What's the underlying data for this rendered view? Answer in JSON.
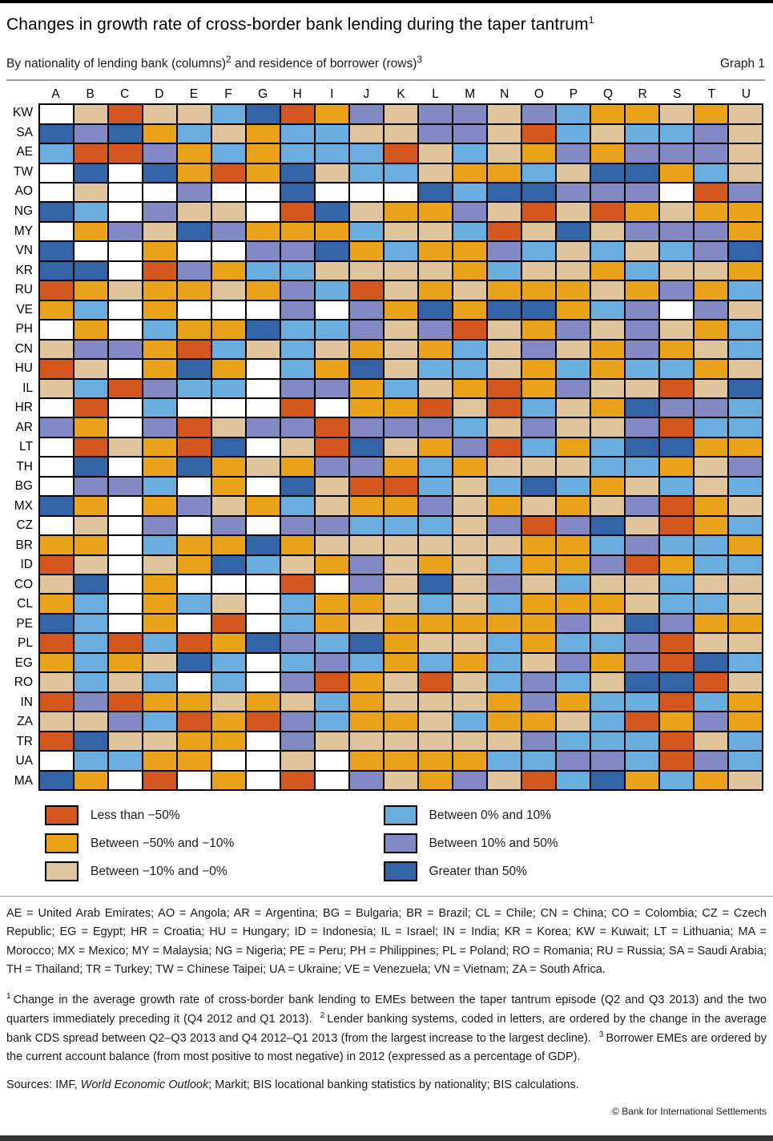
{
  "header": {
    "title": "Changes in growth rate of cross-border bank lending during the taper tantrum",
    "title_sup": "1",
    "subtitle": {
      "part1": "By nationality of lending bank (columns)",
      "sup1": "2",
      "part2": " and residence of borrower (rows)",
      "sup2": "3"
    },
    "graph_label": "Graph 1"
  },
  "chart_data": {
    "type": "heatmap",
    "title": "Changes in growth rate of cross-border bank lending during the taper tantrum",
    "xlabel": "Nationality of lending bank (ordered by change in average bank CDS spread, largest increase to largest decline)",
    "ylabel": "Residence of borrower (ordered by 2012 current account balance, most positive to most negative)",
    "columns": [
      "A",
      "B",
      "C",
      "D",
      "E",
      "F",
      "G",
      "H",
      "I",
      "J",
      "K",
      "L",
      "M",
      "N",
      "O",
      "P",
      "Q",
      "R",
      "S",
      "T",
      "U"
    ],
    "categories": {
      "R": {
        "label": "Less than −50%",
        "color": "#D4571F"
      },
      "O": {
        "label": "Between −50% and −10%",
        "color": "#EBA21B"
      },
      "T": {
        "label": "Between −10% and −0%",
        "color": "#E0C59C"
      },
      "L": {
        "label": "Between 0% and 10%",
        "color": "#6AAEE0"
      },
      "M": {
        "label": "Between 10% and 50%",
        "color": "#8289C4"
      },
      "D": {
        "label": "Greater than 50%",
        "color": "#3464A8"
      },
      "W": {
        "label": "",
        "color": "#FFFFFF"
      }
    },
    "rows": [
      {
        "code": "KW",
        "cells": "WTRTTLDROMTMMTMLOOTOT"
      },
      {
        "code": "SA",
        "cells": "DMDOLTOLLTTMMTRLTLLMT"
      },
      {
        "code": "AE",
        "cells": "LRRMOLOLLLRTLTOMOMMMT"
      },
      {
        "code": "TW",
        "cells": "WDWDORODTLLTOOLTDDOLT"
      },
      {
        "code": "AO",
        "cells": "WTWWMWWDWWWDLDDMMMWRM"
      },
      {
        "code": "NG",
        "cells": "DLWMTTWRDTOOMTRTROTOO"
      },
      {
        "code": "MY",
        "cells": "WOMTDMOOOLTTLRTDTMMMO"
      },
      {
        "code": "VN",
        "cells": "DWWOWWMMDOLOOMLTLTLMD"
      },
      {
        "code": "KR",
        "cells": "DDWRMOLLTTTTOLTTOLTTO"
      },
      {
        "code": "RU",
        "cells": "ROTOOTOMLRTOTOOOTOMOL"
      },
      {
        "code": "VE",
        "cells": "OLWOWWWMWMODODDOLMWMT"
      },
      {
        "code": "PH",
        "cells": "WOWLOODLLMTMRTOMTMTOL"
      },
      {
        "code": "CN",
        "cells": "TMMORLTLTOTOLTMTOMOTL"
      },
      {
        "code": "HU",
        "cells": "RTWODOWLODTLLTOLOLLOT"
      },
      {
        "code": "IL",
        "cells": "TLRMLLWMMOLTOROMTTRTD"
      },
      {
        "code": "HR",
        "cells": "WRWLWWWRWOORTRLTODMML"
      },
      {
        "code": "AR",
        "cells": "MOWMRTMMRMMMLTMTTMRLL"
      },
      {
        "code": "LT",
        "cells": "WRTORDWTRDTOMRLOLDDOO"
      },
      {
        "code": "TH",
        "cells": "WDWODOTOMMOLOTTTLLOTM"
      },
      {
        "code": "BG",
        "cells": "WMMLWOWDTRRLTLDLOTLTL"
      },
      {
        "code": "MX",
        "cells": "DOWOMTOLTOOMTOTOTMROT"
      },
      {
        "code": "CZ",
        "cells": "WTWMWMWMMLLLTMRMDTROL"
      },
      {
        "code": "BR",
        "cells": "OOWLOODOTTTTTTOOLMLLO"
      },
      {
        "code": "ID",
        "cells": "RTWTODLTOMTOTLOOMROLL"
      },
      {
        "code": "CO",
        "cells": "TDWOWWWRWMTDTMTLTTLTT"
      },
      {
        "code": "CL",
        "cells": "OLWOLTWLOOTLTLOOOTLLT"
      },
      {
        "code": "PE",
        "cells": "DLWOWRWLOTOOOOOMTDMOO"
      },
      {
        "code": "PL",
        "cells": "RLRLRODMLDOTTLOLLMRTT"
      },
      {
        "code": "EG",
        "cells": "OLOTDLWLMLOLOLTMOMRDL"
      },
      {
        "code": "RO",
        "cells": "TLTLWLWMROTRTLMLTDDRT"
      },
      {
        "code": "IN",
        "cells": "RMROOTOTLOTTTOMOLLRLO"
      },
      {
        "code": "ZA",
        "cells": "TTMLRORMLOOTLOOTLROMO"
      },
      {
        "code": "TR",
        "cells": "RDTTOOWMTTTTTTMLLLRTL"
      },
      {
        "code": "UA",
        "cells": "WLLOOWWTWOOOOLLMMLRML"
      },
      {
        "code": "MA",
        "cells": "DOWRWOWRWMTOMTRLDOLOT"
      }
    ],
    "legend_position": "bottom",
    "legend_layout": {
      "left": [
        "R",
        "O",
        "T"
      ],
      "right": [
        "L",
        "M",
        "D"
      ]
    }
  },
  "notes": {
    "abbreviations": "AE = United Arab Emirates; AO = Angola; AR = Argentina; BG = Bulgaria; BR = Brazil; CL = Chile; CN = China; CO = Colombia; CZ = Czech Republic;  EG = Egypt;  HR = Croatia;  HU = Hungary;  ID = Indonesia;  IL = Israel;  IN = India;  KR = Korea;  KW = Kuwait;  LT = Lithuania;  MA = Morocco;  MX = Mexico;  MY = Malaysia;  NG = Nigeria;  PE = Peru;  PH = Philippines;  PL = Poland;  RO = Romania;  RU = Russia;  SA = Saudi Arabia; TH = Thailand; TR = Turkey; TW = Chinese Taipei; UA = Ukraine; VE = Venezuela; VN = Vietnam; ZA = South Africa.",
    "footnotes": [
      {
        "sup": "1",
        "text": "Change in the average growth rate of cross-border bank lending to EMEs between the taper tantrum episode (Q2 and Q3 2013) and the two quarters immediately preceding it (Q4 2012 and Q1 2013)."
      },
      {
        "sup": "2",
        "text": "Lender banking systems, coded in letters, are ordered by the change in the average bank CDS spread between Q2–Q3 2013 and Q4 2012–Q1 2013 (from the largest increase to the largest decline)."
      },
      {
        "sup": "3",
        "text": "Borrower EMEs are ordered by the current account balance (from most positive to most negative) in 2012 (expressed as a percentage of GDP)."
      }
    ],
    "sources": {
      "prefix": "Sources: IMF, ",
      "italic": "World Economic Outlook",
      "suffix": "; Markit; BIS locational banking statistics by nationality; BIS calculations."
    },
    "copyright": "© Bank for International Settlements"
  }
}
